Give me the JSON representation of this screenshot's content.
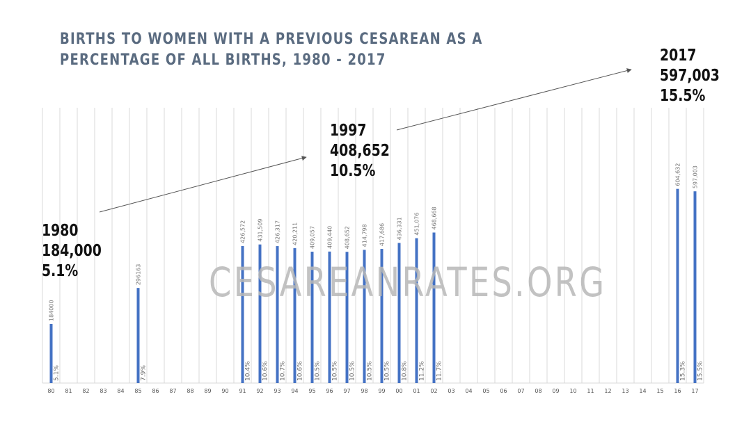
{
  "chart_data": {
    "type": "bar",
    "title": "BIRTHS TO WOMEN WITH A PREVIOUS CESAREAN AS A PERCENTAGE OF ALL BIRTHS, 1980 - 2017",
    "categories": [
      "80",
      "81",
      "82",
      "83",
      "84",
      "85",
      "86",
      "87",
      "88",
      "89",
      "90",
      "91",
      "92",
      "93",
      "94",
      "95",
      "96",
      "97",
      "98",
      "99",
      "00",
      "01",
      "02",
      "03",
      "04",
      "05",
      "06",
      "07",
      "08",
      "09",
      "10",
      "11",
      "12",
      "13",
      "14",
      "15",
      "16",
      "17"
    ],
    "values": [
      184000,
      null,
      null,
      null,
      null,
      296163,
      null,
      null,
      null,
      null,
      null,
      426572,
      431509,
      426317,
      420211,
      409057,
      409440,
      408652,
      414798,
      417686,
      436331,
      451076,
      468668,
      null,
      null,
      null,
      null,
      null,
      null,
      null,
      null,
      null,
      null,
      null,
      null,
      null,
      604632,
      597003
    ],
    "value_labels": [
      "184000",
      "",
      "",
      "",
      "",
      "296163",
      "",
      "",
      "",
      "",
      "",
      "426,572",
      "431,509",
      "426,317",
      "420,211",
      "409,057",
      "409,440",
      "408,652",
      "414,798",
      "417,686",
      "436,331",
      "451,076",
      "468,668",
      "",
      "",
      "",
      "",
      "",
      "",
      "",
      "",
      "",
      "",
      "",
      "",
      "",
      "604,632",
      "597,003"
    ],
    "percent_labels": [
      "5.1%",
      "",
      "",
      "",
      "",
      "7.9%",
      "",
      "",
      "",
      "",
      "",
      "10.4%",
      "10.6%",
      "10.7%",
      "10.6%",
      "10.5%",
      "10.5%",
      "10.5%",
      "10.5%",
      "10.5%",
      "10.8%",
      "11.2%",
      "11.7%",
      "",
      "",
      "",
      "",
      "",
      "",
      "",
      "",
      "",
      "",
      "",
      "",
      "",
      "15.3%",
      "15.5%"
    ],
    "ylim": [
      0,
      700000
    ],
    "grid": true
  },
  "callouts": [
    {
      "year": "1980",
      "value": "184,000",
      "pct": "5.1%"
    },
    {
      "year": "1997",
      "value": "408,652",
      "pct": "10.5%"
    },
    {
      "year": "2017",
      "value": "597,003",
      "pct": "15.5%"
    }
  ],
  "watermark": "CESAREANRATES.ORG"
}
